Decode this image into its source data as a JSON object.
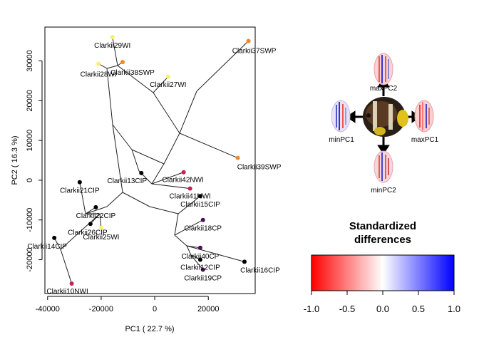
{
  "chart_data": [
    {
      "type": "scatter",
      "title": "",
      "xlabel": "PC1  ( 22.7  %)",
      "ylabel": "PC2  ( 16.3  %)",
      "xlim": [
        -41000,
        37500
      ],
      "ylim": [
        -28500,
        38500
      ],
      "xticks": [
        "-40000",
        "-20000",
        "0",
        "20000"
      ],
      "xtick_values": [
        -40000,
        -20000,
        0,
        20000
      ],
      "yticks": [
        "-20000",
        "-10000",
        "0",
        "10000",
        "20000",
        "30000"
      ],
      "ytick_values": [
        -20000,
        -10000,
        0,
        10000,
        20000,
        30000
      ],
      "grid": false,
      "points": [
        {
          "name": "Clarkii29WI",
          "x": -15800,
          "y": 36000,
          "color": "#F7F06E"
        },
        {
          "name": "Clarkii37SWP",
          "x": 35000,
          "y": 35000,
          "color": "#F08A24"
        },
        {
          "name": "Clarkii38SWP",
          "x": -12000,
          "y": 29700,
          "color": "#F08A24"
        },
        {
          "name": "Clarkii28WI",
          "x": -21000,
          "y": 29300,
          "color": "#F7F06E"
        },
        {
          "name": "Clarkii27WI",
          "x": 5000,
          "y": 26000,
          "color": "#F7F06E"
        },
        {
          "name": "Clarkii39SWP",
          "x": 31000,
          "y": 5600,
          "color": "#F08A24"
        },
        {
          "name": "Clarkii13CIP",
          "x": -5000,
          "y": 1800,
          "color": "#000000"
        },
        {
          "name": "Clarkii42NWI",
          "x": 10800,
          "y": 2000,
          "color": "#C4205A"
        },
        {
          "name": "Clarkii41NWI",
          "x": 13200,
          "y": -2100,
          "color": "#C4205A"
        },
        {
          "name": "Clarkii21CIP",
          "x": -28000,
          "y": -500,
          "color": "#000000"
        },
        {
          "name": "Clarkii15CIP",
          "x": 17000,
          "y": -4000,
          "color": "#000000"
        },
        {
          "name": "Clarkii22CIP",
          "x": -22000,
          "y": -6800,
          "color": "#000000"
        },
        {
          "name": "Clarkii18CP",
          "x": 18000,
          "y": -10000,
          "color": "#4B0F57"
        },
        {
          "name": "Clarkii26CIP",
          "x": -24000,
          "y": -11000,
          "color": "#000000"
        },
        {
          "name": "Clarkii25WI",
          "x": -20000,
          "y": -12000,
          "color": "#F7F06E"
        },
        {
          "name": "Clarkii14CIP",
          "x": -37500,
          "y": -14500,
          "color": "#000000"
        },
        {
          "name": "Clarkii40CP",
          "x": 17000,
          "y": -17000,
          "color": "#4B0F57"
        },
        {
          "name": "Clarkii12CIP",
          "x": 17000,
          "y": -20000,
          "color": "#000000"
        },
        {
          "name": "Clarkii16CIP",
          "x": 33500,
          "y": -20500,
          "color": "#000000"
        },
        {
          "name": "Clarkii19CP",
          "x": 18000,
          "y": -22500,
          "color": "#4B0F57"
        },
        {
          "name": "Clarkii10NWI",
          "x": -31000,
          "y": -26000,
          "color": "#C4205A"
        }
      ]
    },
    {
      "type": "heatmap",
      "title": "Standardized differences",
      "colorbar_ticks": [
        "-1.0",
        "-0.5",
        "0.0",
        "0.5",
        "1.0"
      ],
      "colorbar_values": [
        -1.0,
        -0.5,
        0.0,
        0.5,
        1.0
      ],
      "colors": {
        "low": "#FF0000",
        "mid": "#FFFFFF",
        "high": "#0000FF"
      }
    }
  ],
  "morph_labels": {
    "maxPC2": "maxPC2",
    "minPC1": "minPC1",
    "maxPC1": "maxPC1",
    "minPC2": "minPC2"
  }
}
